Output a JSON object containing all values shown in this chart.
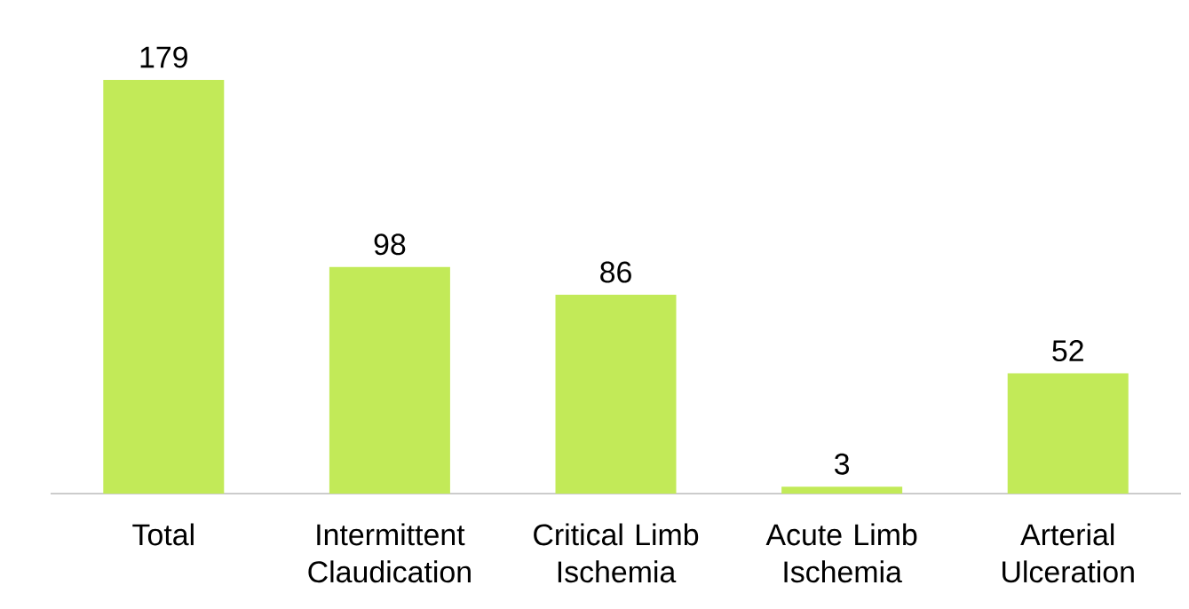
{
  "chart_data": {
    "type": "bar",
    "categories": [
      "Total",
      "Intermittent Claudication",
      "Critical Limb Ischemia",
      "Acute Limb Ischemia",
      "Arterial Ulceration"
    ],
    "values": [
      179,
      98,
      86,
      3,
      52
    ],
    "color": "#c2ea58",
    "data_labels": true
  }
}
